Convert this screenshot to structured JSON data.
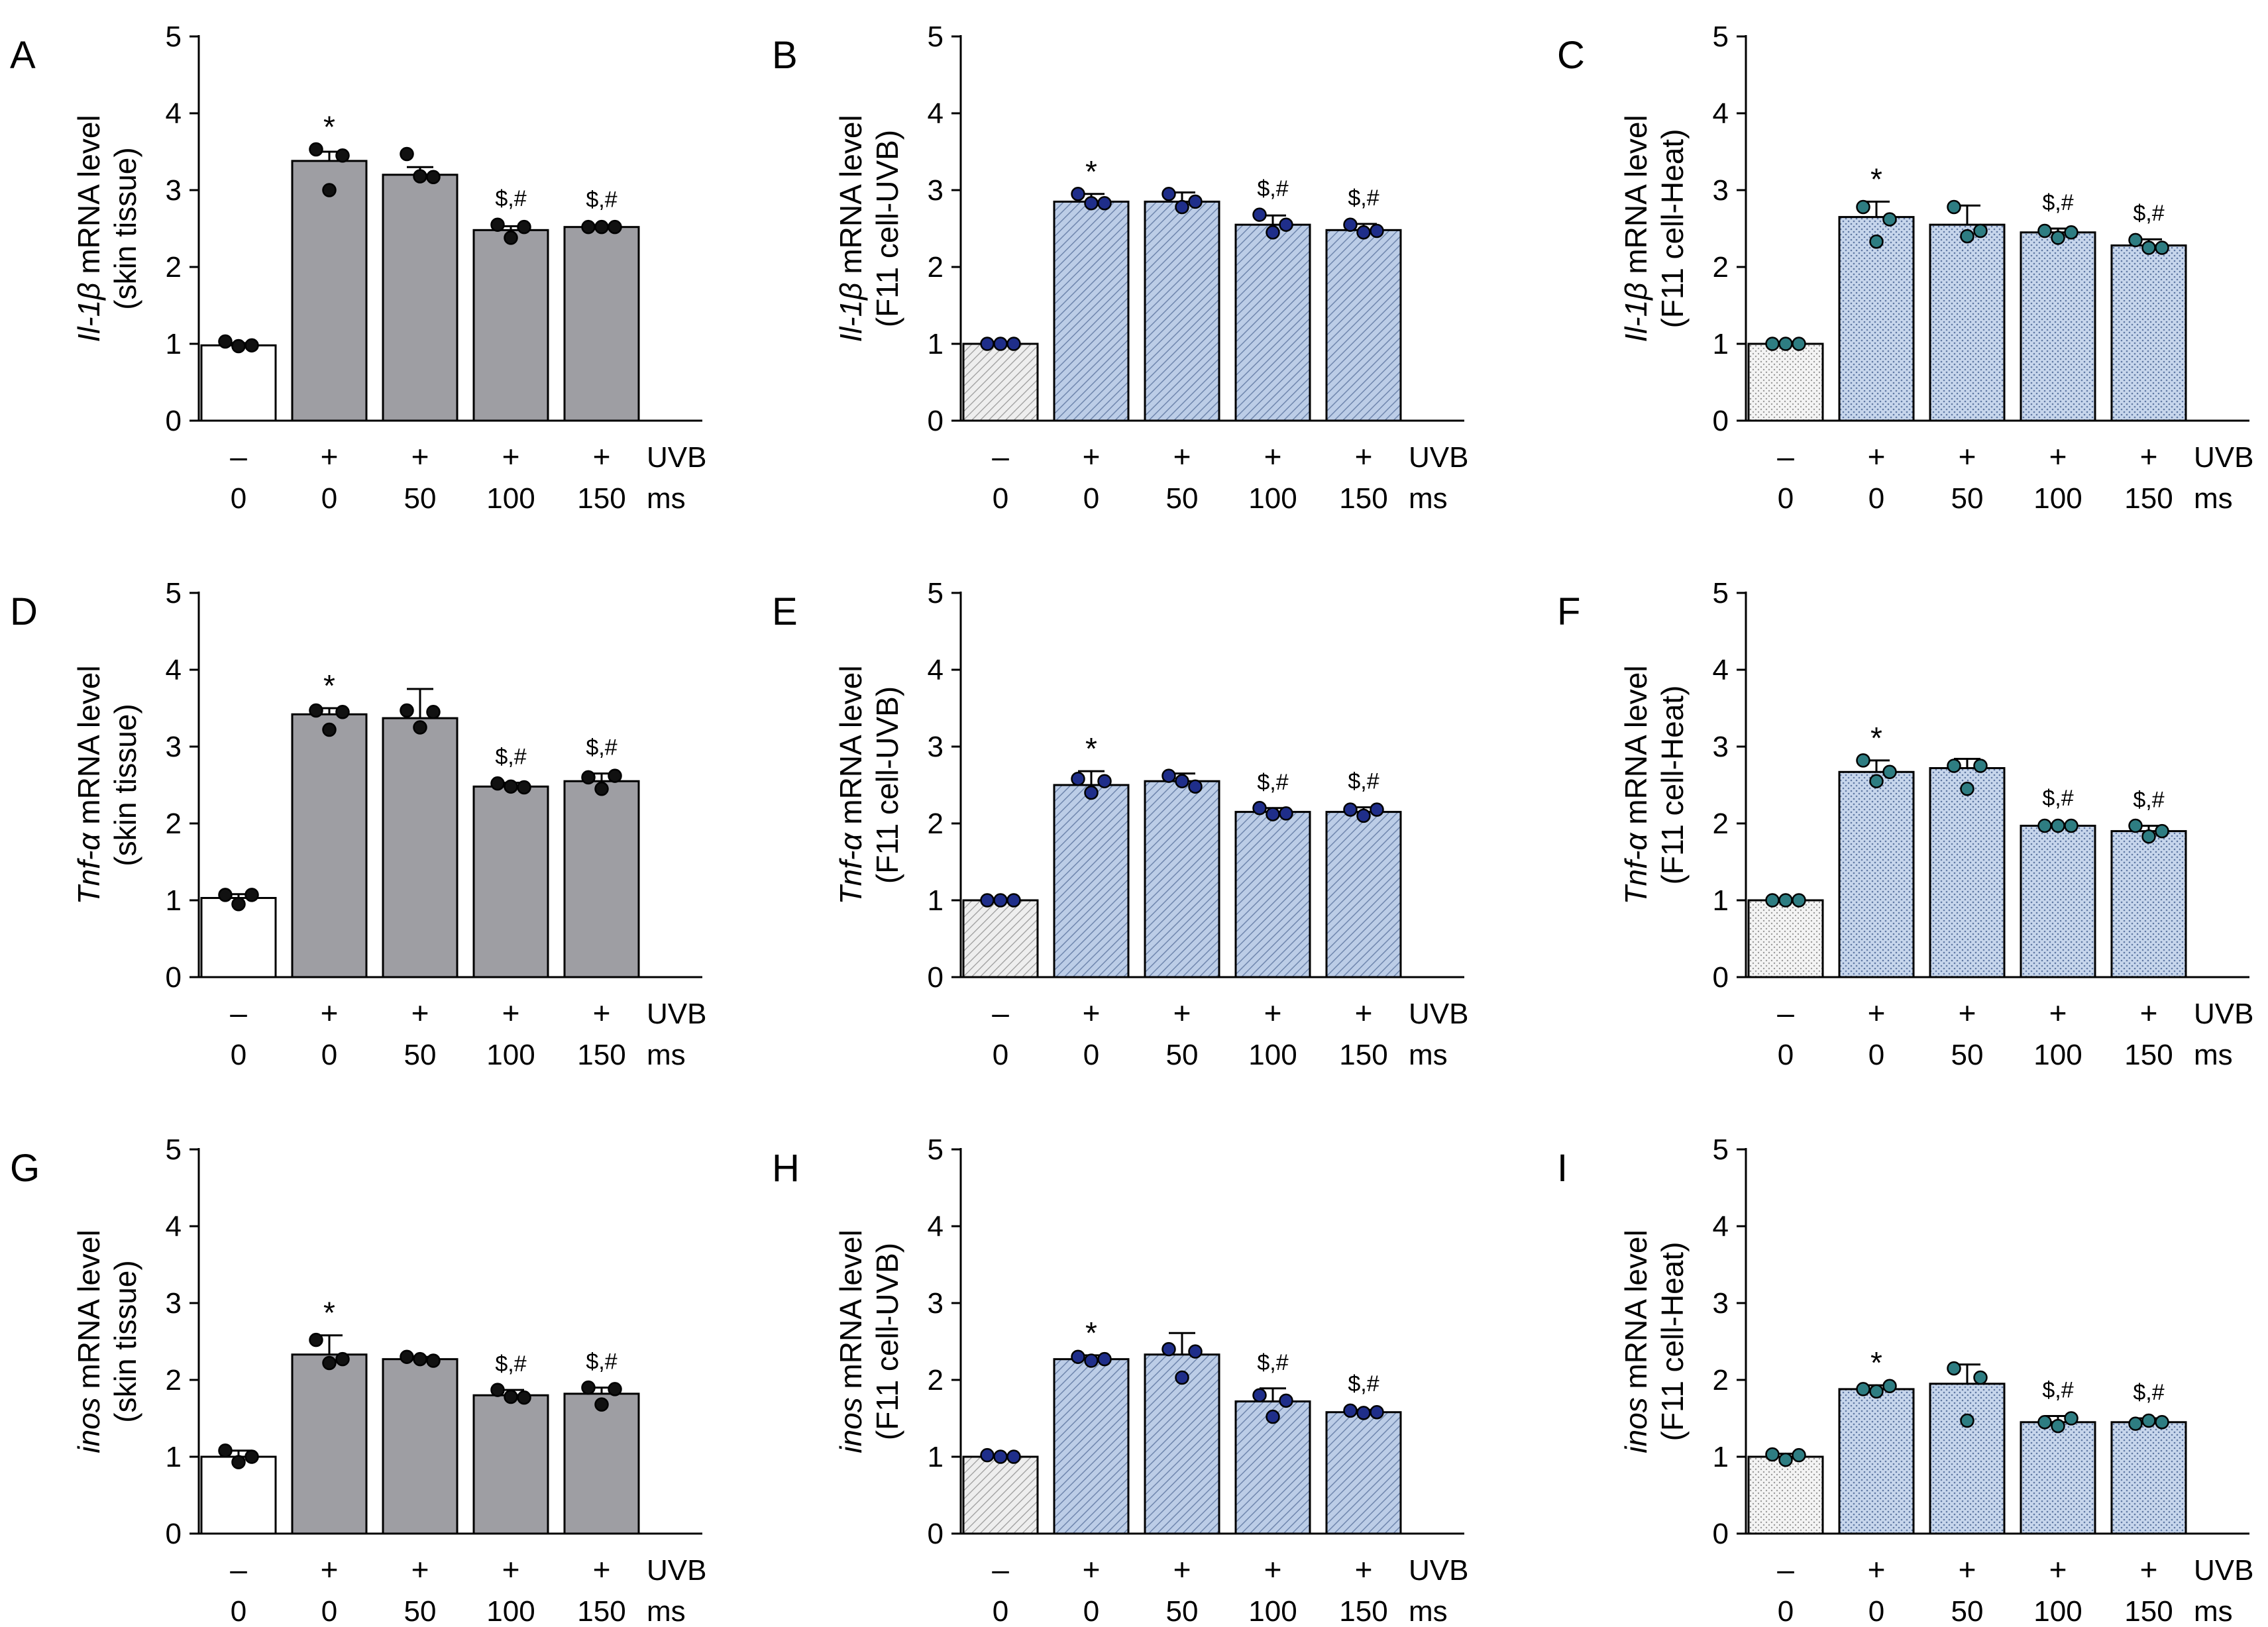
{
  "chart_data": [
    {
      "panel": "A",
      "type": "bar",
      "ylabel_gene": "Il-1β",
      "ylabel_main": "mRNA level",
      "ylabel_sub": "(skin tissue)",
      "ylim": [
        0,
        5
      ],
      "yticks": [
        "0",
        "1",
        "2",
        "3",
        "4",
        "5"
      ],
      "uvb": [
        "–",
        "+",
        "+",
        "+",
        "+"
      ],
      "ms": [
        "0",
        "0",
        "50",
        "100",
        "150"
      ],
      "row_label_uvb": "UVB",
      "row_label_ms": "ms",
      "values": [
        0.98,
        3.38,
        3.2,
        2.48,
        2.52
      ],
      "errors": [
        0.03,
        0.12,
        0.1,
        0.05,
        0.02
      ],
      "points": [
        [
          1.03,
          0.97,
          0.98
        ],
        [
          3.53,
          3.0,
          3.45
        ],
        [
          3.47,
          3.18,
          3.17
        ],
        [
          2.55,
          2.38,
          2.52
        ],
        [
          2.52,
          2.52,
          2.52
        ]
      ],
      "sig": [
        "",
        "*",
        "",
        "$,#",
        "$,#"
      ],
      "fill": "gray"
    },
    {
      "panel": "B",
      "type": "bar",
      "ylabel_gene": "Il-1β",
      "ylabel_main": "mRNA level",
      "ylabel_sub": "(F11 cell-UVB)",
      "ylim": [
        0,
        5
      ],
      "yticks": [
        "0",
        "1",
        "2",
        "3",
        "4",
        "5"
      ],
      "uvb": [
        "–",
        "+",
        "+",
        "+",
        "+"
      ],
      "ms": [
        "0",
        "0",
        "50",
        "100",
        "150"
      ],
      "row_label_uvb": "UVB",
      "row_label_ms": "ms",
      "values": [
        1.0,
        2.85,
        2.85,
        2.55,
        2.48
      ],
      "errors": [
        0.02,
        0.1,
        0.12,
        0.12,
        0.08
      ],
      "points": [
        [
          1.0,
          1.0,
          1.0
        ],
        [
          2.95,
          2.83,
          2.83
        ],
        [
          2.95,
          2.78,
          2.85
        ],
        [
          2.68,
          2.45,
          2.55
        ],
        [
          2.55,
          2.45,
          2.47
        ]
      ],
      "sig": [
        "",
        "*",
        "",
        "$,#",
        "$,#"
      ],
      "fill": "blue-hatch"
    },
    {
      "panel": "C",
      "type": "bar",
      "ylabel_gene": "Il-1β",
      "ylabel_main": "mRNA level",
      "ylabel_sub": "(F11 cell-Heat)",
      "ylim": [
        0,
        5
      ],
      "yticks": [
        "0",
        "1",
        "2",
        "3",
        "4",
        "5"
      ],
      "uvb": [
        "–",
        "+",
        "+",
        "+",
        "+"
      ],
      "ms": [
        "0",
        "0",
        "50",
        "100",
        "150"
      ],
      "row_label_uvb": "UVB",
      "row_label_ms": "ms",
      "values": [
        1.0,
        2.65,
        2.55,
        2.45,
        2.28
      ],
      "errors": [
        0.02,
        0.2,
        0.25,
        0.05,
        0.08
      ],
      "points": [
        [
          1.0,
          1.0,
          1.0
        ],
        [
          2.78,
          2.33,
          2.62
        ],
        [
          2.78,
          2.4,
          2.47
        ],
        [
          2.47,
          2.38,
          2.45
        ],
        [
          2.35,
          2.25,
          2.25
        ]
      ],
      "sig": [
        "",
        "*",
        "",
        "$,#",
        "$,#"
      ],
      "fill": "blue-dots"
    },
    {
      "panel": "D",
      "type": "bar",
      "ylabel_gene": "Tnf-α",
      "ylabel_main": "mRNA level",
      "ylabel_sub": "(skin tissue)",
      "ylim": [
        0,
        5
      ],
      "yticks": [
        "0",
        "1",
        "2",
        "3",
        "4",
        "5"
      ],
      "uvb": [
        "–",
        "+",
        "+",
        "+",
        "+"
      ],
      "ms": [
        "0",
        "0",
        "50",
        "100",
        "150"
      ],
      "row_label_uvb": "UVB",
      "row_label_ms": "ms",
      "values": [
        1.03,
        3.42,
        3.37,
        2.48,
        2.55
      ],
      "errors": [
        0.05,
        0.08,
        0.38,
        0.05,
        0.1
      ],
      "points": [
        [
          1.07,
          0.95,
          1.07
        ],
        [
          3.47,
          3.22,
          3.45
        ],
        [
          3.47,
          3.25,
          3.45
        ],
        [
          2.52,
          2.48,
          2.47
        ],
        [
          2.6,
          2.45,
          2.62
        ]
      ],
      "sig": [
        "",
        "*",
        "",
        "$,#",
        "$,#"
      ],
      "fill": "gray"
    },
    {
      "panel": "E",
      "type": "bar",
      "ylabel_gene": "Tnf-α",
      "ylabel_main": "mRNA level",
      "ylabel_sub": "(F11 cell-UVB)",
      "ylim": [
        0,
        5
      ],
      "yticks": [
        "0",
        "1",
        "2",
        "3",
        "4",
        "5"
      ],
      "uvb": [
        "–",
        "+",
        "+",
        "+",
        "+"
      ],
      "ms": [
        "0",
        "0",
        "50",
        "100",
        "150"
      ],
      "row_label_uvb": "UVB",
      "row_label_ms": "ms",
      "values": [
        1.0,
        2.5,
        2.55,
        2.15,
        2.15
      ],
      "errors": [
        0.02,
        0.18,
        0.1,
        0.05,
        0.06
      ],
      "points": [
        [
          1.0,
          1.0,
          1.0
        ],
        [
          2.58,
          2.4,
          2.55
        ],
        [
          2.62,
          2.55,
          2.48
        ],
        [
          2.2,
          2.12,
          2.13
        ],
        [
          2.18,
          2.1,
          2.18
        ]
      ],
      "sig": [
        "",
        "*",
        "",
        "$,#",
        "$,#"
      ],
      "fill": "blue-hatch"
    },
    {
      "panel": "F",
      "type": "bar",
      "ylabel_gene": "Tnf-α",
      "ylabel_main": "mRNA level",
      "ylabel_sub": "(F11 cell-Heat)",
      "ylim": [
        0,
        5
      ],
      "yticks": [
        "0",
        "1",
        "2",
        "3",
        "4",
        "5"
      ],
      "uvb": [
        "–",
        "+",
        "+",
        "+",
        "+"
      ],
      "ms": [
        "0",
        "0",
        "50",
        "100",
        "150"
      ],
      "row_label_uvb": "UVB",
      "row_label_ms": "ms",
      "values": [
        1.0,
        2.67,
        2.72,
        1.97,
        1.9
      ],
      "errors": [
        0.02,
        0.15,
        0.12,
        0.02,
        0.07
      ],
      "points": [
        [
          1.0,
          1.0,
          1.0
        ],
        [
          2.82,
          2.55,
          2.67
        ],
        [
          2.75,
          2.45,
          2.75
        ],
        [
          1.97,
          1.97,
          1.97
        ],
        [
          1.97,
          1.83,
          1.9
        ]
      ],
      "sig": [
        "",
        "*",
        "",
        "$,#",
        "$,#"
      ],
      "fill": "blue-dots"
    },
    {
      "panel": "G",
      "type": "bar",
      "ylabel_gene": "inos",
      "ylabel_main": "mRNA level",
      "ylabel_sub": "(skin tissue)",
      "ylim": [
        0,
        5
      ],
      "yticks": [
        "0",
        "1",
        "2",
        "3",
        "4",
        "5"
      ],
      "uvb": [
        "–",
        "+",
        "+",
        "+",
        "+"
      ],
      "ms": [
        "0",
        "0",
        "50",
        "100",
        "150"
      ],
      "row_label_uvb": "UVB",
      "row_label_ms": "ms",
      "values": [
        1.0,
        2.33,
        2.27,
        1.8,
        1.82
      ],
      "errors": [
        0.08,
        0.25,
        0.03,
        0.07,
        0.08
      ],
      "points": [
        [
          1.08,
          0.93,
          1.0
        ],
        [
          2.52,
          2.22,
          2.27
        ],
        [
          2.3,
          2.27,
          2.25
        ],
        [
          1.87,
          1.78,
          1.77
        ],
        [
          1.9,
          1.68,
          1.88
        ]
      ],
      "sig": [
        "",
        "*",
        "",
        "$,#",
        "$,#"
      ],
      "fill": "gray"
    },
    {
      "panel": "H",
      "type": "bar",
      "ylabel_gene": "inos",
      "ylabel_main": "mRNA level",
      "ylabel_sub": "(F11 cell-UVB)",
      "ylim": [
        0,
        5
      ],
      "yticks": [
        "0",
        "1",
        "2",
        "3",
        "4",
        "5"
      ],
      "uvb": [
        "–",
        "+",
        "+",
        "+",
        "+"
      ],
      "ms": [
        "0",
        "0",
        "50",
        "100",
        "150"
      ],
      "row_label_uvb": "UVB",
      "row_label_ms": "ms",
      "values": [
        1.0,
        2.27,
        2.33,
        1.72,
        1.58
      ],
      "errors": [
        0.02,
        0.05,
        0.28,
        0.17,
        0.03
      ],
      "points": [
        [
          1.02,
          1.0,
          1.0
        ],
        [
          2.3,
          2.25,
          2.27
        ],
        [
          2.4,
          2.03,
          2.37
        ],
        [
          1.8,
          1.52,
          1.73
        ],
        [
          1.6,
          1.57,
          1.58
        ]
      ],
      "sig": [
        "",
        "*",
        "",
        "$,#",
        "$,#"
      ],
      "fill": "blue-hatch"
    },
    {
      "panel": "I",
      "type": "bar",
      "ylabel_gene": "inos",
      "ylabel_main": "mRNA level",
      "ylabel_sub": "(F11 cell-Heat)",
      "ylim": [
        0,
        5
      ],
      "yticks": [
        "0",
        "1",
        "2",
        "3",
        "4",
        "5"
      ],
      "uvb": [
        "–",
        "+",
        "+",
        "+",
        "+"
      ],
      "ms": [
        "0",
        "0",
        "50",
        "100",
        "150"
      ],
      "row_label_uvb": "UVB",
      "row_label_ms": "ms",
      "values": [
        1.0,
        1.88,
        1.95,
        1.45,
        1.45
      ],
      "errors": [
        0.04,
        0.05,
        0.25,
        0.08,
        0.05
      ],
      "points": [
        [
          1.03,
          0.96,
          1.02
        ],
        [
          1.88,
          1.85,
          1.92
        ],
        [
          2.15,
          1.47,
          2.03
        ],
        [
          1.45,
          1.4,
          1.5
        ],
        [
          1.43,
          1.47,
          1.45
        ]
      ],
      "sig": [
        "",
        "*",
        "",
        "$,#",
        "$,#"
      ],
      "fill": "blue-dots"
    }
  ],
  "colors": {
    "gray_bar": "#9e9ea3",
    "control_white": "#ffffff",
    "control_hatch": "#d9d9d9",
    "blue_bar": "#b9cbe6",
    "blue_pattern": "#6f86ad",
    "dot_black": "#111111",
    "dot_blue": "#1f2e8a",
    "dot_teal": "#2e7d82"
  }
}
